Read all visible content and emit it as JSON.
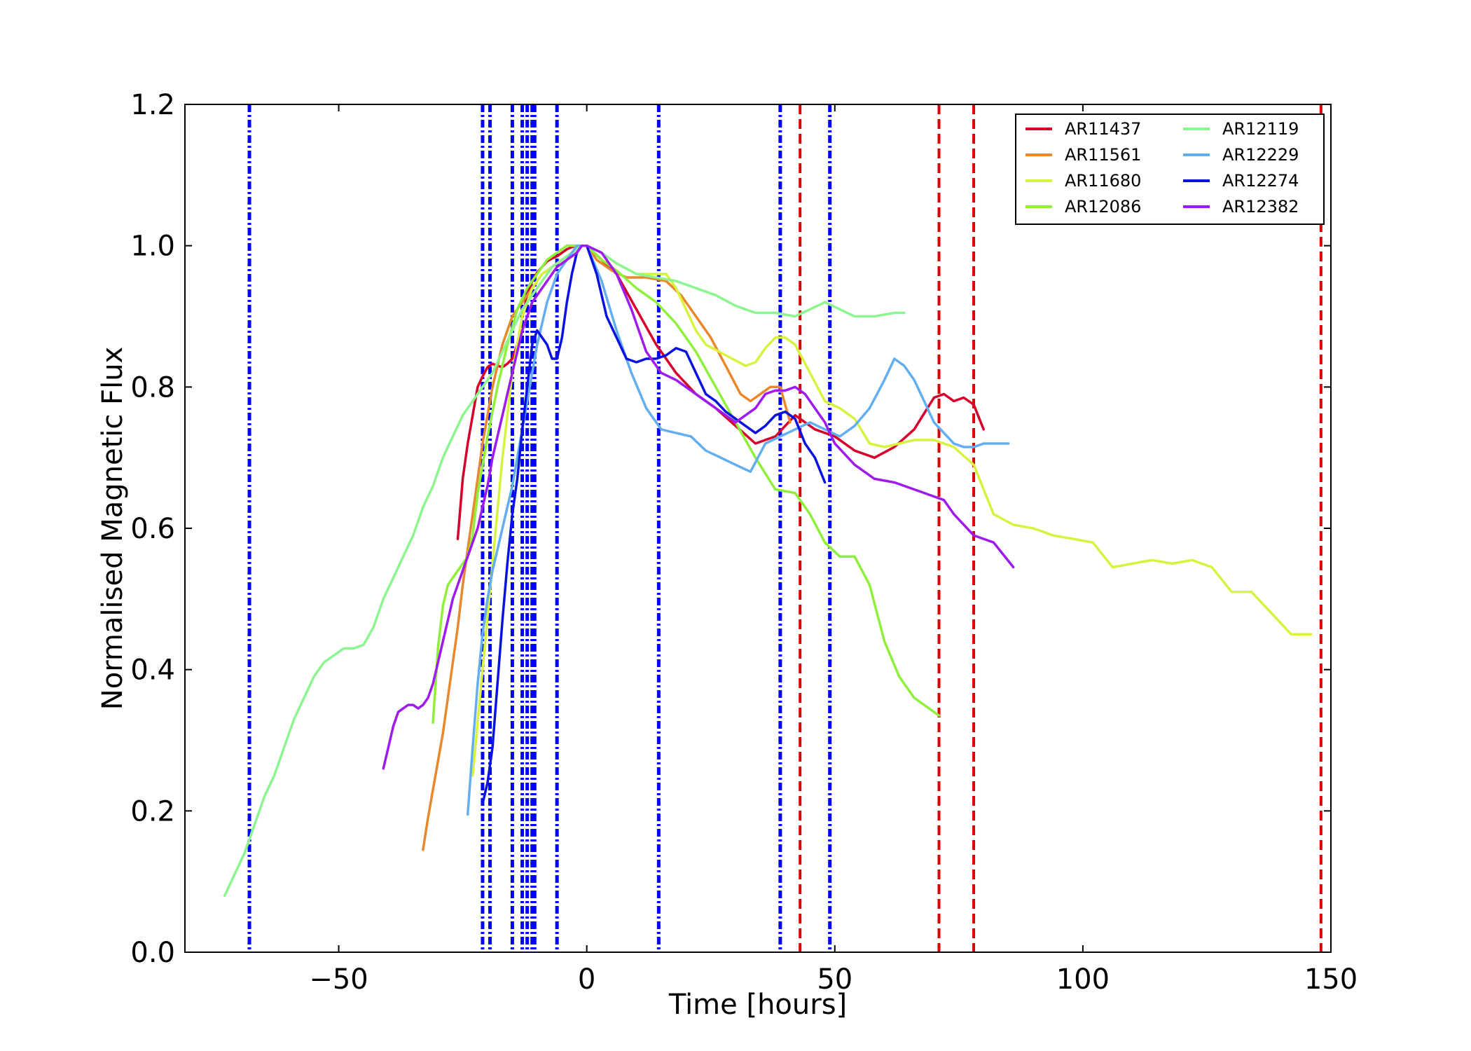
{
  "chart_data": {
    "type": "line",
    "xlabel": "Time [hours]",
    "ylabel": "Normalised Magnetic Flux",
    "xlim": [
      -81,
      150
    ],
    "ylim": [
      0.0,
      1.2
    ],
    "xticks": [
      -50,
      0,
      50,
      100,
      150
    ],
    "xtick_labels": [
      "−50",
      "0",
      "50",
      "100",
      "150"
    ],
    "yticks": [
      0.0,
      0.2,
      0.4,
      0.6,
      0.8,
      1.0,
      1.2
    ],
    "ytick_labels": [
      "0.0",
      "0.2",
      "0.4",
      "0.6",
      "0.8",
      "1.0",
      "1.2"
    ],
    "grid": false,
    "legend_position": "top-right",
    "legend_columns": 2,
    "series": [
      {
        "name": "AR11437",
        "color": "#d7002a",
        "x": [
          -26,
          -25,
          -24,
          -23,
          -22,
          -21,
          -20,
          -19,
          -18,
          -17,
          -16,
          -15,
          -14,
          -13,
          -12,
          -11,
          -10,
          -9,
          -8,
          -7,
          -6,
          -5,
          -4,
          -3,
          -2,
          -1,
          0,
          3,
          6,
          10,
          14,
          18,
          22,
          26,
          30,
          34,
          38,
          42,
          46,
          50,
          54,
          58,
          62,
          66,
          70,
          72,
          74,
          76,
          78,
          80
        ],
        "y": [
          0.585,
          0.67,
          0.72,
          0.76,
          0.8,
          0.815,
          0.828,
          0.833,
          0.83,
          0.828,
          0.833,
          0.84,
          0.86,
          0.9,
          0.93,
          0.95,
          0.962,
          0.97,
          0.978,
          0.982,
          0.985,
          0.99,
          0.995,
          0.998,
          1.0,
          1.0,
          1.0,
          0.98,
          0.96,
          0.91,
          0.86,
          0.82,
          0.79,
          0.77,
          0.745,
          0.72,
          0.73,
          0.76,
          0.74,
          0.73,
          0.71,
          0.7,
          0.715,
          0.74,
          0.785,
          0.79,
          0.78,
          0.785,
          0.775,
          0.74
        ]
      },
      {
        "name": "AR11561",
        "color": "#e8872c",
        "x": [
          -33,
          -32,
          -31,
          -30,
          -29,
          -28,
          -27,
          -26,
          -25,
          -24,
          -23,
          -22,
          -21,
          -20,
          -19,
          -18,
          -17,
          -16,
          -15,
          -14,
          -13,
          -12,
          -11,
          -10,
          -9,
          -8,
          -7,
          -6,
          -5,
          -4,
          -3,
          -2,
          -1,
          0,
          2,
          5,
          8,
          12,
          16,
          19,
          22,
          25,
          28,
          31,
          33,
          35,
          37,
          39,
          41
        ],
        "y": [
          0.145,
          0.19,
          0.23,
          0.27,
          0.31,
          0.36,
          0.41,
          0.46,
          0.52,
          0.57,
          0.62,
          0.67,
          0.72,
          0.76,
          0.8,
          0.83,
          0.86,
          0.88,
          0.9,
          0.91,
          0.92,
          0.93,
          0.94,
          0.95,
          0.96,
          0.965,
          0.97,
          0.975,
          0.98,
          0.985,
          0.99,
          0.995,
          1.0,
          1.0,
          0.98,
          0.965,
          0.955,
          0.955,
          0.95,
          0.93,
          0.9,
          0.87,
          0.83,
          0.79,
          0.78,
          0.79,
          0.8,
          0.8,
          0.75
        ]
      },
      {
        "name": "AR11680",
        "color": "#d8f23d",
        "x": [
          -23,
          -21,
          -19,
          -17,
          -15,
          -13,
          -11,
          -9,
          -7,
          -5,
          -3,
          -1,
          0,
          3,
          6,
          10,
          14,
          16,
          18,
          20,
          22,
          24,
          28,
          32,
          34,
          36,
          38,
          40,
          42,
          45,
          48,
          51,
          54,
          57,
          60,
          63,
          66,
          70,
          74,
          78,
          82,
          86,
          90,
          94,
          98,
          102,
          106,
          110,
          114,
          118,
          122,
          126,
          130,
          134,
          138,
          142,
          146
        ],
        "y": [
          0.25,
          0.4,
          0.55,
          0.7,
          0.82,
          0.9,
          0.94,
          0.96,
          0.97,
          0.98,
          0.99,
          1.0,
          1.0,
          0.99,
          0.975,
          0.96,
          0.96,
          0.96,
          0.94,
          0.91,
          0.88,
          0.86,
          0.845,
          0.83,
          0.835,
          0.855,
          0.87,
          0.87,
          0.86,
          0.82,
          0.78,
          0.77,
          0.755,
          0.72,
          0.715,
          0.72,
          0.725,
          0.725,
          0.715,
          0.69,
          0.62,
          0.605,
          0.6,
          0.59,
          0.585,
          0.58,
          0.545,
          0.55,
          0.555,
          0.55,
          0.555,
          0.545,
          0.51,
          0.51,
          0.48,
          0.45,
          0.45
        ]
      },
      {
        "name": "AR12086",
        "color": "#8ef03a",
        "x": [
          -31,
          -30,
          -29,
          -28,
          -27,
          -26,
          -25,
          -24,
          -23,
          -22,
          -20,
          -18,
          -16,
          -14,
          -12,
          -10,
          -8,
          -6,
          -4,
          -2,
          0,
          3,
          6,
          10,
          14,
          18,
          22,
          26,
          30,
          34,
          38,
          42,
          45,
          48,
          51,
          54,
          57,
          60,
          63,
          66,
          69,
          71
        ],
        "y": [
          0.325,
          0.43,
          0.49,
          0.52,
          0.53,
          0.54,
          0.55,
          0.56,
          0.59,
          0.65,
          0.73,
          0.8,
          0.86,
          0.91,
          0.94,
          0.96,
          0.98,
          0.99,
          1.0,
          1.0,
          1.0,
          0.98,
          0.965,
          0.94,
          0.92,
          0.89,
          0.85,
          0.8,
          0.75,
          0.7,
          0.655,
          0.65,
          0.62,
          0.58,
          0.56,
          0.56,
          0.52,
          0.44,
          0.39,
          0.36,
          0.345,
          0.335
        ]
      },
      {
        "name": "AR12119",
        "color": "#8cf58f",
        "x": [
          -73,
          -71,
          -69,
          -67,
          -65,
          -63,
          -61,
          -59,
          -57,
          -55,
          -53,
          -51,
          -49,
          -47,
          -45,
          -43,
          -41,
          -39,
          -37,
          -35,
          -33,
          -31,
          -29,
          -27,
          -25,
          -23,
          -21,
          -19,
          -17,
          -15,
          -13,
          -11,
          -9,
          -7,
          -5,
          -3,
          -1,
          0,
          3,
          6,
          10,
          14,
          18,
          22,
          26,
          30,
          34,
          38,
          42,
          45,
          48,
          51,
          54,
          58,
          62,
          64
        ],
        "y": [
          0.08,
          0.11,
          0.14,
          0.18,
          0.22,
          0.25,
          0.29,
          0.33,
          0.36,
          0.39,
          0.41,
          0.42,
          0.43,
          0.43,
          0.435,
          0.46,
          0.5,
          0.53,
          0.56,
          0.59,
          0.63,
          0.66,
          0.7,
          0.73,
          0.76,
          0.78,
          0.8,
          0.82,
          0.85,
          0.88,
          0.91,
          0.93,
          0.95,
          0.97,
          0.98,
          0.99,
          1.0,
          1.0,
          0.99,
          0.975,
          0.96,
          0.955,
          0.95,
          0.94,
          0.93,
          0.915,
          0.905,
          0.905,
          0.9,
          0.91,
          0.92,
          0.91,
          0.9,
          0.9,
          0.905,
          0.905
        ]
      },
      {
        "name": "AR12229",
        "color": "#62aef0",
        "x": [
          -24,
          -23,
          -22,
          -21,
          -20,
          -19,
          -18,
          -17,
          -16,
          -15,
          -14,
          -13,
          -12,
          -11,
          -10,
          -9,
          -8,
          -7,
          -6,
          -5,
          -4,
          -3,
          -2,
          -1,
          0,
          3,
          6,
          9,
          12,
          15,
          18,
          21,
          24,
          27,
          30,
          33,
          36,
          39,
          42,
          45,
          48,
          51,
          54,
          57,
          60,
          62,
          64,
          66,
          68,
          70,
          72,
          74,
          76,
          78,
          80,
          82,
          85
        ],
        "y": [
          0.195,
          0.29,
          0.38,
          0.45,
          0.5,
          0.54,
          0.57,
          0.6,
          0.63,
          0.66,
          0.7,
          0.74,
          0.78,
          0.82,
          0.86,
          0.89,
          0.92,
          0.94,
          0.96,
          0.97,
          0.98,
          0.99,
          1.0,
          1.0,
          1.0,
          0.95,
          0.88,
          0.82,
          0.77,
          0.74,
          0.735,
          0.73,
          0.71,
          0.7,
          0.69,
          0.68,
          0.72,
          0.73,
          0.74,
          0.75,
          0.74,
          0.73,
          0.745,
          0.77,
          0.81,
          0.84,
          0.83,
          0.81,
          0.78,
          0.75,
          0.735,
          0.72,
          0.715,
          0.715,
          0.72,
          0.72,
          0.72
        ]
      },
      {
        "name": "AR12274",
        "color": "#0a12e0",
        "x": [
          -21,
          -20,
          -19,
          -18,
          -17,
          -16,
          -15,
          -14,
          -13,
          -12,
          -11,
          -10,
          -9,
          -8,
          -7,
          -6,
          -5,
          -4,
          -3,
          -2,
          -1,
          0,
          2,
          4,
          6,
          8,
          10,
          12,
          14,
          16,
          18,
          20,
          22,
          24,
          26,
          28,
          30,
          32,
          34,
          36,
          38,
          40,
          42,
          44,
          46,
          48
        ],
        "y": [
          0.21,
          0.24,
          0.29,
          0.38,
          0.47,
          0.55,
          0.62,
          0.67,
          0.74,
          0.8,
          0.86,
          0.88,
          0.87,
          0.86,
          0.84,
          0.84,
          0.87,
          0.92,
          0.96,
          0.99,
          1.0,
          1.0,
          0.96,
          0.9,
          0.87,
          0.84,
          0.835,
          0.84,
          0.84,
          0.845,
          0.855,
          0.85,
          0.82,
          0.79,
          0.78,
          0.765,
          0.755,
          0.745,
          0.735,
          0.745,
          0.76,
          0.765,
          0.755,
          0.72,
          0.7,
          0.665
        ]
      },
      {
        "name": "AR12382",
        "color": "#9e1aed",
        "x": [
          -41,
          -40,
          -39,
          -38,
          -37,
          -36,
          -35,
          -34,
          -33,
          -32,
          -31,
          -30,
          -29,
          -28,
          -27,
          -26,
          -25,
          -24,
          -23,
          -22,
          -21,
          -20,
          -19,
          -18,
          -17,
          -16,
          -15,
          -14,
          -13,
          -12,
          -11,
          -10,
          -9,
          -8,
          -7,
          -6,
          -5,
          -4,
          -3,
          -2,
          -1,
          0,
          3,
          6,
          9,
          12,
          15,
          18,
          22,
          26,
          28,
          30,
          32,
          34,
          36,
          38,
          40,
          42,
          44,
          46,
          48,
          50,
          54,
          58,
          62,
          66,
          70,
          72,
          74,
          78,
          82,
          86
        ],
        "y": [
          0.26,
          0.29,
          0.32,
          0.34,
          0.345,
          0.35,
          0.35,
          0.345,
          0.35,
          0.36,
          0.38,
          0.41,
          0.44,
          0.47,
          0.5,
          0.52,
          0.54,
          0.56,
          0.58,
          0.6,
          0.63,
          0.66,
          0.7,
          0.73,
          0.76,
          0.79,
          0.82,
          0.85,
          0.88,
          0.9,
          0.92,
          0.93,
          0.94,
          0.95,
          0.96,
          0.97,
          0.975,
          0.98,
          0.985,
          0.99,
          1.0,
          1.0,
          0.99,
          0.96,
          0.91,
          0.85,
          0.82,
          0.81,
          0.79,
          0.77,
          0.76,
          0.75,
          0.76,
          0.77,
          0.79,
          0.795,
          0.795,
          0.8,
          0.79,
          0.77,
          0.75,
          0.72,
          0.69,
          0.67,
          0.665,
          0.655,
          0.645,
          0.64,
          0.62,
          0.59,
          0.58,
          0.545
        ]
      }
    ],
    "vlines_blue_dashdot": {
      "color": "#0000ff",
      "x": [
        -68,
        -21,
        -19.5,
        -15,
        -13,
        -12,
        -11,
        -10.5,
        -6,
        14.5,
        39,
        49
      ]
    },
    "vlines_red_dashed": {
      "color": "#dd0000",
      "x": [
        43,
        71,
        78,
        148
      ]
    }
  }
}
